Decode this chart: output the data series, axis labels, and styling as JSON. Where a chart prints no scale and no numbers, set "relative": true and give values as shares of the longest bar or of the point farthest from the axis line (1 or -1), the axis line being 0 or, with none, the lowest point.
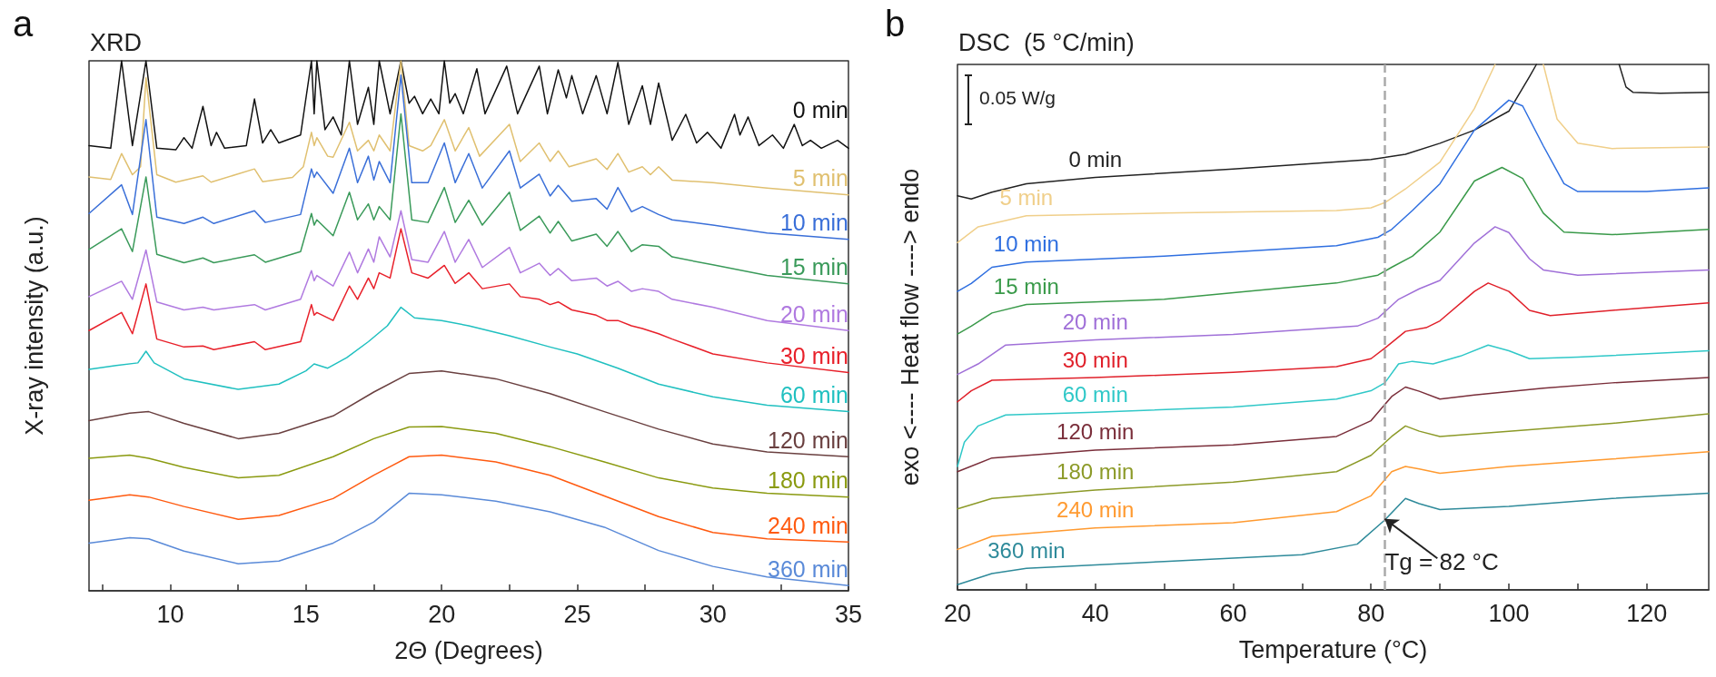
{
  "chart_data": [
    {
      "type": "line",
      "title": "XRD",
      "xlabel": "2Θ (Degrees)",
      "ylabel": "X-ray intensity (a.u.)",
      "relative": true,
      "tick_labels": "x",
      "annotations": [
        "a"
      ],
      "xlim": [
        7,
        35
      ],
      "xticks": [
        {
          "value": 7.5,
          "label": null
        },
        10,
        {
          "value": 12.5,
          "label": null
        },
        15,
        {
          "value": 17.5,
          "label": null
        },
        20,
        {
          "value": 22.5,
          "label": null
        },
        25,
        {
          "value": 27.5,
          "label": null
        },
        30,
        {
          "value": 32.5,
          "label": null
        },
        35
      ],
      "series": [
        {
          "name": "0 min",
          "color": "#111111",
          "x": [
            7.0,
            7.8,
            8.2,
            8.6,
            9.1,
            9.5,
            10.2,
            10.5,
            10.8,
            11.2,
            11.5,
            11.7,
            12.0,
            12.8,
            13.1,
            13.4,
            13.7,
            14.0,
            14.8,
            15.2,
            15.3,
            15.4,
            15.7,
            16.0,
            16.3,
            16.6,
            16.9,
            17.3,
            17.5,
            17.7,
            18.1,
            18.5,
            18.8,
            19.0,
            19.3,
            19.6,
            19.9,
            20.1,
            20.3,
            20.5,
            20.8,
            21.3,
            21.6,
            22.4,
            22.8,
            23.6,
            23.9,
            24.3,
            24.6,
            24.8,
            25.2,
            25.7,
            26.1,
            26.5,
            26.9,
            27.4,
            27.7,
            28.0,
            28.5,
            29.0,
            29.4,
            29.8,
            30.3,
            30.8,
            31.0,
            31.3,
            31.7,
            32.2,
            32.6,
            33.0,
            33.3,
            33.6,
            34.0,
            34.6,
            35.0
          ],
          "values": [
            0.84,
            0.835,
            1.0,
            0.84,
            1.0,
            0.835,
            0.832,
            0.855,
            0.835,
            0.914,
            0.84,
            0.865,
            0.835,
            0.84,
            0.928,
            0.845,
            0.87,
            0.845,
            0.86,
            1.0,
            0.9,
            1.0,
            0.87,
            0.894,
            0.86,
            1.0,
            0.88,
            0.95,
            0.88,
            1.0,
            0.9,
            1.0,
            0.92,
            0.933,
            0.9,
            0.928,
            0.9,
            1.0,
            0.92,
            0.938,
            0.9,
            0.985,
            0.9,
            0.99,
            0.9,
            0.99,
            0.9,
            0.983,
            0.93,
            0.972,
            0.9,
            0.972,
            0.9,
            0.997,
            0.88,
            0.953,
            0.88,
            0.958,
            0.85,
            0.899,
            0.845,
            0.865,
            0.835,
            0.899,
            0.86,
            0.894,
            0.84,
            0.86,
            0.835,
            0.88,
            0.84,
            0.85,
            0.835,
            0.85,
            0.835
          ]
        },
        {
          "name": "5 min",
          "color": "#e0c070",
          "x": [
            7.0,
            7.8,
            8.2,
            8.6,
            8.9,
            9.1,
            9.5,
            10.2,
            11.2,
            11.5,
            13.1,
            13.4,
            14.5,
            14.9,
            15.2,
            15.3,
            15.4,
            15.8,
            16.0,
            16.6,
            16.9,
            17.3,
            17.5,
            17.7,
            18.1,
            18.5,
            18.8,
            19.3,
            19.6,
            20.1,
            20.5,
            21.0,
            21.4,
            22.5,
            22.9,
            23.6,
            24.0,
            24.3,
            24.7,
            25.7,
            26.1,
            26.5,
            26.9,
            27.4,
            27.7,
            28.0,
            28.5,
            30.0,
            32.0,
            35.0
          ],
          "values": [
            0.781,
            0.776,
            0.825,
            0.785,
            0.8,
            0.968,
            0.785,
            0.771,
            0.783,
            0.771,
            0.796,
            0.772,
            0.78,
            0.8,
            0.865,
            0.84,
            0.855,
            0.82,
            0.818,
            0.884,
            0.83,
            0.85,
            0.83,
            0.86,
            0.83,
            1.0,
            0.84,
            0.83,
            0.84,
            0.889,
            0.83,
            0.874,
            0.82,
            0.88,
            0.81,
            0.845,
            0.81,
            0.83,
            0.8,
            0.815,
            0.795,
            0.825,
            0.79,
            0.8,
            0.785,
            0.8,
            0.775,
            0.77,
            0.76,
            0.747
          ]
        },
        {
          "name": "10 min",
          "color": "#3a6fd8",
          "x": [
            7,
            8.2,
            8.6,
            9.1,
            9.5,
            10.5,
            11.2,
            11.6,
            13.1,
            13.5,
            14.8,
            15.2,
            15.3,
            15.4,
            16.0,
            16.6,
            16.9,
            17.3,
            17.5,
            17.7,
            18.1,
            18.5,
            18.9,
            19.5,
            20.1,
            20.5,
            21.0,
            21.5,
            22.5,
            22.9,
            23.6,
            24.0,
            24.3,
            24.8,
            25.7,
            26.1,
            26.5,
            27.0,
            27.4,
            28.0,
            28.5,
            30,
            32,
            35
          ],
          "values": [
            0.712,
            0.766,
            0.71,
            0.889,
            0.705,
            0.693,
            0.705,
            0.693,
            0.717,
            0.695,
            0.71,
            0.796,
            0.78,
            0.79,
            0.75,
            0.835,
            0.77,
            0.82,
            0.775,
            0.81,
            0.77,
            0.973,
            0.77,
            0.77,
            0.845,
            0.77,
            0.825,
            0.76,
            0.83,
            0.76,
            0.786,
            0.745,
            0.765,
            0.735,
            0.74,
            0.72,
            0.761,
            0.715,
            0.725,
            0.71,
            0.7,
            0.69,
            0.675,
            0.663
          ]
        },
        {
          "name": "15 min",
          "color": "#3a9a5a",
          "x": [
            7,
            8.2,
            8.6,
            9.1,
            9.5,
            10.5,
            11.2,
            11.6,
            13.1,
            13.5,
            14.8,
            15.2,
            15.3,
            15.4,
            16.0,
            16.6,
            16.9,
            17.3,
            17.5,
            17.7,
            18.1,
            18.5,
            18.9,
            19.5,
            20.1,
            20.5,
            21.0,
            21.5,
            22.5,
            22.9,
            23.6,
            24.0,
            24.3,
            24.8,
            25.7,
            26.1,
            26.5,
            27.0,
            27.4,
            28.0,
            28.5,
            30,
            32,
            35
          ],
          "values": [
            0.644,
            0.683,
            0.64,
            0.781,
            0.635,
            0.619,
            0.628,
            0.619,
            0.634,
            0.62,
            0.64,
            0.712,
            0.69,
            0.7,
            0.67,
            0.752,
            0.7,
            0.73,
            0.7,
            0.725,
            0.7,
            0.9,
            0.7,
            0.695,
            0.761,
            0.695,
            0.737,
            0.69,
            0.752,
            0.68,
            0.707,
            0.675,
            0.697,
            0.66,
            0.673,
            0.65,
            0.678,
            0.64,
            0.653,
            0.65,
            0.63,
            0.615,
            0.595,
            0.579
          ]
        },
        {
          "name": "20 min",
          "color": "#b07ae0",
          "x": [
            7,
            8.2,
            8.6,
            9.1,
            9.5,
            10.5,
            11.2,
            11.6,
            13.1,
            13.5,
            14.8,
            15.2,
            15.3,
            15.4,
            16.0,
            16.6,
            16.9,
            17.3,
            17.5,
            17.7,
            18.1,
            18.5,
            18.9,
            19.5,
            20.1,
            20.5,
            21.0,
            21.5,
            22.5,
            22.9,
            23.6,
            24.0,
            24.3,
            24.8,
            25.7,
            26.1,
            26.5,
            27.0,
            27.4,
            28.0,
            28.5,
            30,
            32,
            35
          ],
          "values": [
            0.555,
            0.584,
            0.55,
            0.643,
            0.545,
            0.53,
            0.535,
            0.53,
            0.54,
            0.53,
            0.55,
            0.604,
            0.585,
            0.595,
            0.575,
            0.639,
            0.6,
            0.645,
            0.62,
            0.668,
            0.63,
            0.717,
            0.625,
            0.62,
            0.678,
            0.62,
            0.663,
            0.61,
            0.648,
            0.6,
            0.618,
            0.595,
            0.608,
            0.585,
            0.59,
            0.575,
            0.584,
            0.565,
            0.57,
            0.565,
            0.55,
            0.535,
            0.51,
            0.491
          ]
        },
        {
          "name": "30 min",
          "color": "#e8202a",
          "x": [
            7,
            8.2,
            8.6,
            9.1,
            9.5,
            10.5,
            11.2,
            11.6,
            13.1,
            13.5,
            14.8,
            15.2,
            15.3,
            15.4,
            16.0,
            16.6,
            16.9,
            17.3,
            17.5,
            17.7,
            18.1,
            18.5,
            18.9,
            19.5,
            20.1,
            20.5,
            21.0,
            21.5,
            22.5,
            22.9,
            23.6,
            24.0,
            24.3,
            24.8,
            25.7,
            26.1,
            26.5,
            27.0,
            27.4,
            28.0,
            28.5,
            30,
            32,
            35
          ],
          "values": [
            0.491,
            0.525,
            0.485,
            0.579,
            0.475,
            0.46,
            0.462,
            0.455,
            0.47,
            0.455,
            0.47,
            0.54,
            0.52,
            0.525,
            0.51,
            0.575,
            0.55,
            0.59,
            0.57,
            0.6,
            0.59,
            0.683,
            0.6,
            0.59,
            0.614,
            0.58,
            0.6,
            0.57,
            0.579,
            0.555,
            0.55,
            0.54,
            0.545,
            0.53,
            0.52,
            0.51,
            0.51,
            0.5,
            0.495,
            0.485,
            0.475,
            0.447,
            0.43,
            0.412
          ]
        },
        {
          "name": "60 min",
          "color": "#20c0c0",
          "x": [
            7,
            8,
            8.8,
            9.1,
            9.4,
            10.5,
            12.5,
            14,
            15,
            15.3,
            15.8,
            16.5,
            17.3,
            18,
            18.5,
            19,
            20,
            21,
            22.5,
            24,
            25,
            26.5,
            28,
            30,
            32,
            35
          ],
          "values": [
            0.418,
            0.425,
            0.43,
            0.452,
            0.43,
            0.4,
            0.38,
            0.39,
            0.415,
            0.428,
            0.42,
            0.44,
            0.47,
            0.5,
            0.535,
            0.515,
            0.51,
            0.5,
            0.481,
            0.46,
            0.447,
            0.42,
            0.39,
            0.366,
            0.35,
            0.338
          ]
        },
        {
          "name": "120 min",
          "color": "#6a4040",
          "x": [
            7,
            8.5,
            9.2,
            10.5,
            12.5,
            14,
            16,
            17.5,
            18.8,
            20,
            22,
            24,
            26,
            28,
            30,
            32,
            35
          ],
          "values": [
            0.321,
            0.335,
            0.338,
            0.316,
            0.287,
            0.297,
            0.33,
            0.375,
            0.41,
            0.415,
            0.4,
            0.372,
            0.338,
            0.305,
            0.277,
            0.262,
            0.253
          ]
        },
        {
          "name": "180 min",
          "color": "#8a9a10",
          "x": [
            7,
            8.5,
            9.2,
            10.5,
            12.5,
            14,
            16,
            17.5,
            18.8,
            20,
            22,
            24,
            26,
            28,
            30,
            32,
            35
          ],
          "values": [
            0.25,
            0.256,
            0.25,
            0.233,
            0.213,
            0.218,
            0.253,
            0.287,
            0.309,
            0.31,
            0.297,
            0.272,
            0.243,
            0.213,
            0.194,
            0.184,
            0.177
          ]
        },
        {
          "name": "240 min",
          "color": "#ff5a10",
          "x": [
            7,
            8.5,
            9.2,
            10.5,
            12.5,
            14,
            16,
            17.5,
            18.8,
            20,
            22,
            24,
            26,
            28,
            30,
            32,
            35
          ],
          "values": [
            0.171,
            0.181,
            0.177,
            0.159,
            0.135,
            0.142,
            0.174,
            0.218,
            0.253,
            0.256,
            0.243,
            0.218,
            0.179,
            0.14,
            0.11,
            0.098,
            0.092
          ]
        },
        {
          "name": "360 min",
          "color": "#5a8ad8",
          "x": [
            7,
            8.5,
            9.2,
            10.5,
            12.5,
            14,
            16,
            17.5,
            18.8,
            20,
            22,
            24,
            26,
            28,
            30,
            32,
            35
          ],
          "values": [
            0.09,
            0.1,
            0.098,
            0.075,
            0.051,
            0.056,
            0.09,
            0.13,
            0.184,
            0.181,
            0.169,
            0.149,
            0.12,
            0.076,
            0.046,
            0.026,
            0.01
          ]
        }
      ]
    },
    {
      "type": "line",
      "title": "DSC  (5 °C/min)",
      "xlabel": "Temperature (°C)",
      "ylabel": "exo <---- Heat flow ----> endo",
      "relative": true,
      "tick_labels": "x",
      "annotations": [
        "b",
        "0.05 W/g",
        {
          "text": "Tg = 82 °C",
          "x": 82,
          "y": 0.135
        }
      ],
      "xlim": [
        20,
        129
      ],
      "xticks": [
        20,
        {
          "value": 30,
          "label": null
        },
        40,
        {
          "value": 50,
          "label": null
        },
        60,
        {
          "value": 70,
          "label": null
        },
        80,
        {
          "value": 90,
          "label": null
        },
        100,
        {
          "value": 110,
          "label": null
        },
        120
      ],
      "ref_lines": [
        {
          "axis": "x",
          "value": 82,
          "color": "#aaaaaa",
          "line_style": "dashed"
        }
      ],
      "series": [
        {
          "name": "0 min",
          "color": "#222222",
          "x": [
            20,
            22,
            25,
            30,
            40,
            60,
            80,
            85,
            90,
            95,
            100,
            103,
            104,
            110,
            116,
            117,
            118,
            122,
            129
          ],
          "values": [
            0.75,
            0.744,
            0.757,
            0.773,
            0.785,
            0.801,
            0.819,
            0.829,
            0.85,
            0.875,
            0.911,
            0.977,
            1.0,
            null,
            1.0,
            0.957,
            0.947,
            0.945,
            0.947
          ]
        },
        {
          "name": "5 min",
          "color": "#f0cf8a",
          "x": [
            20,
            23,
            30,
            50,
            75,
            80,
            82,
            85,
            90,
            95,
            98,
            101,
            105,
            107,
            110,
            115,
            129
          ],
          "values": [
            0.661,
            0.691,
            0.712,
            0.717,
            0.722,
            0.727,
            0.737,
            0.763,
            0.814,
            0.916,
            1.0,
            null,
            1.0,
            0.896,
            0.85,
            0.84,
            0.843
          ]
        },
        {
          "name": "10 min",
          "color": "#2f6fe0",
          "x": [
            20,
            22,
            25,
            30,
            50,
            75,
            81,
            83,
            86,
            90,
            95,
            100,
            102,
            105,
            108,
            110,
            120,
            129
          ],
          "values": [
            0.568,
            0.583,
            0.614,
            0.624,
            0.635,
            0.655,
            0.671,
            0.686,
            0.722,
            0.773,
            0.875,
            0.932,
            0.921,
            0.845,
            0.773,
            0.758,
            0.758,
            0.765
          ]
        },
        {
          "name": "15 min",
          "color": "#3a9a4a",
          "x": [
            20,
            22,
            25,
            30,
            50,
            75,
            81,
            83,
            86,
            90,
            95,
            99,
            102,
            105,
            108,
            115,
            129
          ],
          "values": [
            0.487,
            0.502,
            0.527,
            0.543,
            0.553,
            0.584,
            0.599,
            0.614,
            0.635,
            0.681,
            0.778,
            0.804,
            0.783,
            0.717,
            0.681,
            0.676,
            0.686
          ]
        },
        {
          "name": "20 min",
          "color": "#a070d8",
          "x": [
            20,
            23,
            27,
            40,
            60,
            78,
            81,
            84,
            87,
            90,
            95,
            98,
            100,
            103,
            105,
            110,
            129
          ],
          "values": [
            0.41,
            0.43,
            0.466,
            0.476,
            0.486,
            0.502,
            0.517,
            0.553,
            0.573,
            0.589,
            0.66,
            0.691,
            0.68,
            0.63,
            0.609,
            0.599,
            0.609
          ]
        },
        {
          "name": "30 min",
          "color": "#e0202a",
          "x": [
            20,
            22,
            25,
            40,
            60,
            75,
            80,
            82,
            85,
            88,
            90,
            95,
            97,
            100,
            103,
            106,
            115,
            129
          ],
          "values": [
            0.358,
            0.379,
            0.399,
            0.404,
            0.414,
            0.425,
            0.44,
            0.46,
            0.492,
            0.499,
            0.512,
            0.568,
            0.584,
            0.568,
            0.532,
            0.522,
            0.532,
            0.546
          ]
        },
        {
          "name": "60 min",
          "color": "#30c8c8",
          "x": [
            20,
            21,
            23,
            27,
            40,
            60,
            75,
            80,
            82,
            84,
            86,
            89,
            93,
            97,
            100,
            103,
            110,
            129
          ],
          "values": [
            0.235,
            0.281,
            0.312,
            0.333,
            0.338,
            0.348,
            0.363,
            0.379,
            0.394,
            0.43,
            0.435,
            0.43,
            0.445,
            0.466,
            0.455,
            0.44,
            0.443,
            0.455
          ]
        },
        {
          "name": "120 min",
          "color": "#7a2e3a",
          "x": [
            20,
            25,
            40,
            60,
            75,
            80,
            83,
            85,
            87,
            90,
            95,
            105,
            115,
            129
          ],
          "values": [
            0.225,
            0.251,
            0.266,
            0.276,
            0.292,
            0.322,
            0.368,
            0.386,
            0.378,
            0.363,
            0.371,
            0.384,
            0.394,
            0.404
          ]
        },
        {
          "name": "180 min",
          "color": "#8c9a28",
          "x": [
            20,
            25,
            40,
            60,
            75,
            80,
            83,
            85,
            87,
            90,
            100,
            115,
            129
          ],
          "values": [
            0.154,
            0.174,
            0.19,
            0.205,
            0.225,
            0.256,
            0.292,
            0.312,
            0.302,
            0.292,
            0.302,
            0.317,
            0.335
          ]
        },
        {
          "name": "240 min",
          "color": "#ff9a30",
          "x": [
            20,
            25,
            40,
            60,
            75,
            80,
            83,
            85,
            87,
            90,
            100,
            115,
            129
          ],
          "values": [
            0.077,
            0.102,
            0.118,
            0.128,
            0.149,
            0.179,
            0.225,
            0.235,
            0.23,
            0.222,
            0.235,
            0.249,
            0.263
          ]
        },
        {
          "name": "360 min",
          "color": "#2e8a9a",
          "x": [
            20,
            25,
            30,
            50,
            70,
            78,
            82,
            85,
            87,
            90,
            100,
            115,
            129
          ],
          "values": [
            0.01,
            0.031,
            0.041,
            0.054,
            0.067,
            0.087,
            0.133,
            0.174,
            0.164,
            0.153,
            0.159,
            0.174,
            0.184
          ]
        }
      ]
    }
  ]
}
